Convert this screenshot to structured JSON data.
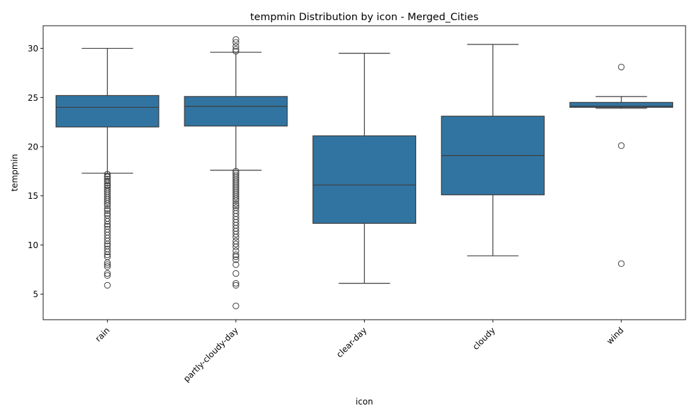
{
  "chart_data": {
    "type": "box",
    "title": "tempmin Distribution by icon - Merged_Cities",
    "xlabel": "icon",
    "ylabel": "tempmin",
    "ylim": [
      2.4,
      32.3
    ],
    "yticks": [
      5,
      10,
      15,
      20,
      25,
      30
    ],
    "grid": false,
    "box_color": "#3274a1",
    "line_color": "#3d3d3d",
    "categories": [
      "rain",
      "partly-cloudy-day",
      "clear-day",
      "cloudy",
      "wind"
    ],
    "boxes": [
      {
        "category": "rain",
        "whisker_low": 17.3,
        "q1": 22.0,
        "median": 24.0,
        "q3": 25.2,
        "whisker_high": 30.0,
        "outliers": [
          17.2,
          17.0,
          16.9,
          16.7,
          16.5,
          16.3,
          16.1,
          16.0,
          15.8,
          15.6,
          15.4,
          15.2,
          15.0,
          14.8,
          14.6,
          14.4,
          14.2,
          14.0,
          13.7,
          13.5,
          13.2,
          13.0,
          12.7,
          12.4,
          12.1,
          11.9,
          11.6,
          11.3,
          11.0,
          10.7,
          10.4,
          10.1,
          9.9,
          9.6,
          9.3,
          9.0,
          8.8,
          8.2,
          8.0,
          7.8,
          7.1,
          6.9,
          5.9
        ]
      },
      {
        "category": "partly-cloudy-day",
        "whisker_low": 17.6,
        "q1": 22.1,
        "median": 24.1,
        "q3": 25.1,
        "whisker_high": 29.6,
        "outliers": [
          30.9,
          30.6,
          30.2,
          29.9,
          29.7,
          17.5,
          17.3,
          17.1,
          16.9,
          16.7,
          16.5,
          16.3,
          16.1,
          15.9,
          15.7,
          15.5,
          15.3,
          15.1,
          14.9,
          14.7,
          14.5,
          14.2,
          14.0,
          13.8,
          13.5,
          13.2,
          12.9,
          12.6,
          12.3,
          12.0,
          11.7,
          11.4,
          11.1,
          10.8,
          10.4,
          10.1,
          9.8,
          9.4,
          9.0,
          8.8,
          8.5,
          8.0,
          7.1,
          6.1,
          5.9,
          3.8
        ]
      },
      {
        "category": "clear-day",
        "whisker_low": 6.1,
        "q1": 12.2,
        "median": 16.1,
        "q3": 21.1,
        "whisker_high": 29.5,
        "outliers": []
      },
      {
        "category": "cloudy",
        "whisker_low": 8.9,
        "q1": 15.1,
        "median": 19.1,
        "q3": 23.1,
        "whisker_high": 30.4,
        "outliers": []
      },
      {
        "category": "wind",
        "whisker_low": 23.9,
        "q1": 24.0,
        "median": 24.1,
        "q3": 24.5,
        "whisker_high": 25.1,
        "outliers": [
          28.1,
          20.1,
          8.1
        ]
      }
    ]
  }
}
